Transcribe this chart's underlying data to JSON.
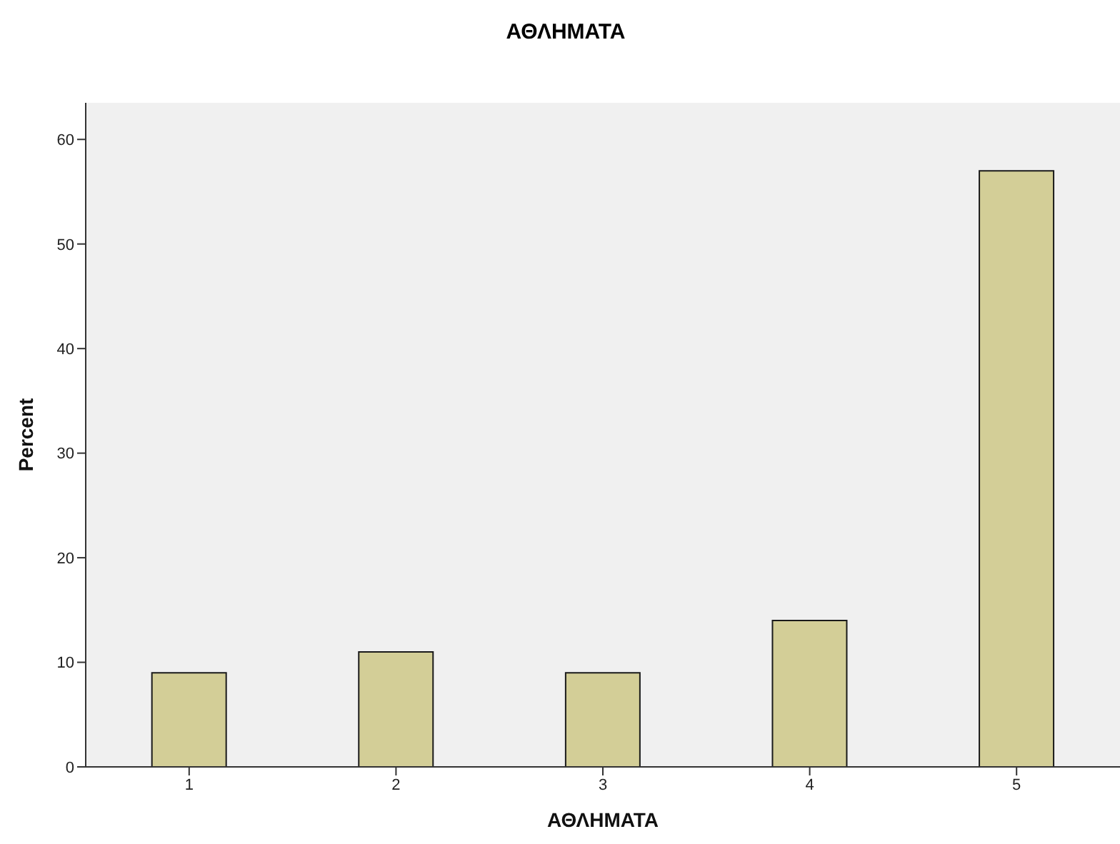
{
  "chart_data": {
    "type": "bar",
    "title": "ΑΘΛΗΜΑΤΑ",
    "xlabel": "ΑΘΛΗΜΑΤΑ",
    "ylabel": "Percent",
    "categories": [
      "1",
      "2",
      "3",
      "4",
      "5"
    ],
    "values": [
      9,
      11,
      9,
      14,
      57
    ],
    "color": "#d3ce97",
    "ylim": [
      0,
      63.5
    ],
    "yticks": [
      0,
      10,
      20,
      30,
      40,
      50,
      60
    ],
    "grid": false
  }
}
